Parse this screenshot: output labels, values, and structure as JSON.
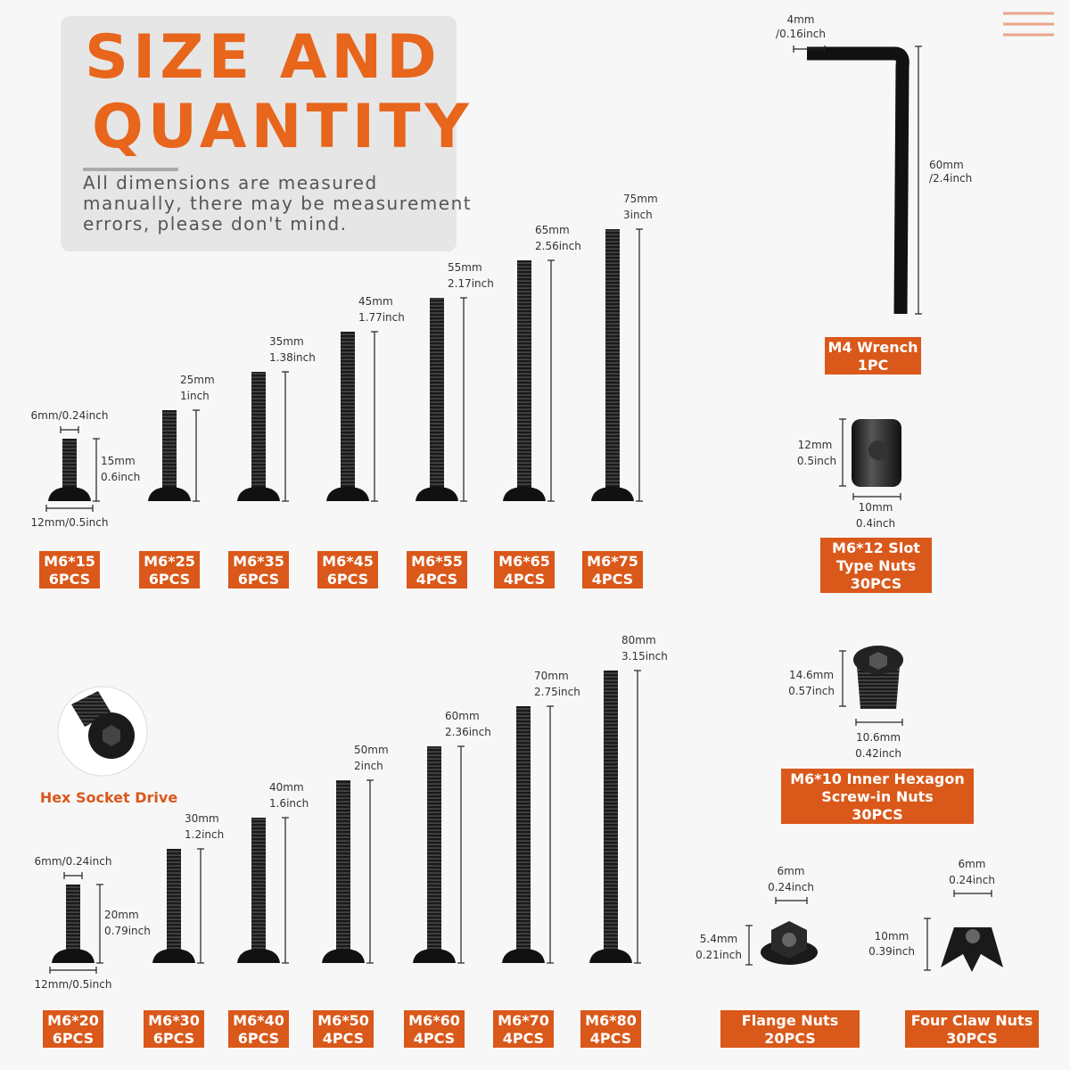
{
  "header": {
    "title": [
      "SIZE AND",
      "QUANTITY"
    ],
    "note": [
      "All dimensions are measured",
      "manually, there may be measurement",
      "errors, please don't mind."
    ]
  },
  "screws_top": [
    {
      "name": "M6*15",
      "quantity": "6PCS",
      "length": "15mm",
      "length_inch": "0.6inch"
    },
    {
      "name": "M6*25",
      "quantity": "6PCS",
      "length": "25mm",
      "length_inch": "1inch"
    },
    {
      "name": "M6*35",
      "quantity": "6PCS",
      "length": "35mm",
      "length_inch": "1.38inch"
    },
    {
      "name": "M6*45",
      "quantity": "6PCS",
      "length": "45mm",
      "length_inch": "1.77inch"
    },
    {
      "name": "M6*55",
      "quantity": "4PCS",
      "length": "55mm",
      "length_inch": "2.17inch"
    },
    {
      "name": "M6*65",
      "quantity": "4PCS",
      "length": "65mm",
      "length_inch": "2.56inch"
    },
    {
      "name": "M6*75",
      "quantity": "4PCS",
      "length": "75mm",
      "length_inch": "3inch"
    }
  ],
  "screws_top_head": "6mm/0.24inch",
  "screws_top_width": "12mm/0.5inch",
  "screws_bottom": [
    {
      "name": "M6*20",
      "quantity": "6PCS",
      "length": "20mm",
      "length_inch": "0.79inch"
    },
    {
      "name": "M6*30",
      "quantity": "6PCS",
      "length": "30mm",
      "length_inch": "1.2inch"
    },
    {
      "name": "M6*40",
      "quantity": "6PCS",
      "length": "40mm",
      "length_inch": "1.6inch"
    },
    {
      "name": "M6*50",
      "quantity": "4PCS",
      "length": "50mm",
      "length_inch": "2inch"
    },
    {
      "name": "M6*60",
      "quantity": "4PCS",
      "length": "60mm",
      "length_inch": "2.36inch"
    },
    {
      "name": "M6*70",
      "quantity": "4PCS",
      "length": "70mm",
      "length_inch": "2.75inch"
    },
    {
      "name": "M6*80",
      "quantity": "4PCS",
      "length": "80mm",
      "length_inch": "3.15inch"
    }
  ],
  "screws_bottom_head": "6mm/0.24inch",
  "screws_bottom_width": "12mm/0.5inch",
  "hex_socket": "Hex Socket Drive",
  "wrench": {
    "name": "M4 Wrench",
    "quantity": "1PC",
    "tip": [
      "4mm",
      "/0.16inch"
    ],
    "length": [
      "60mm",
      "/2.4inch"
    ]
  },
  "slot_nut": {
    "name": [
      "M6*12 Slot",
      "Type Nuts"
    ],
    "quantity": "30PCS",
    "height": [
      "12mm",
      "0.5inch"
    ],
    "width": [
      "10mm",
      "0.4inch"
    ]
  },
  "hex_nut": {
    "name": [
      "M6*10 Inner Hexagon",
      "Screw-in Nuts"
    ],
    "quantity": "30PCS",
    "height": [
      "14.6mm",
      "0.57inch"
    ],
    "width": [
      "10.6mm",
      "0.42inch"
    ]
  },
  "flange_nut": {
    "name": "Flange Nuts",
    "quantity": "20PCS",
    "width": [
      "6mm",
      "0.24inch"
    ],
    "height": [
      "5.4mm",
      "0.21inch"
    ]
  },
  "claw_nut": {
    "name": "Four Claw Nuts",
    "quantity": "30PCS",
    "width": [
      "6mm",
      "0.24inch"
    ],
    "height": [
      "10mm",
      "0.39inch"
    ]
  }
}
